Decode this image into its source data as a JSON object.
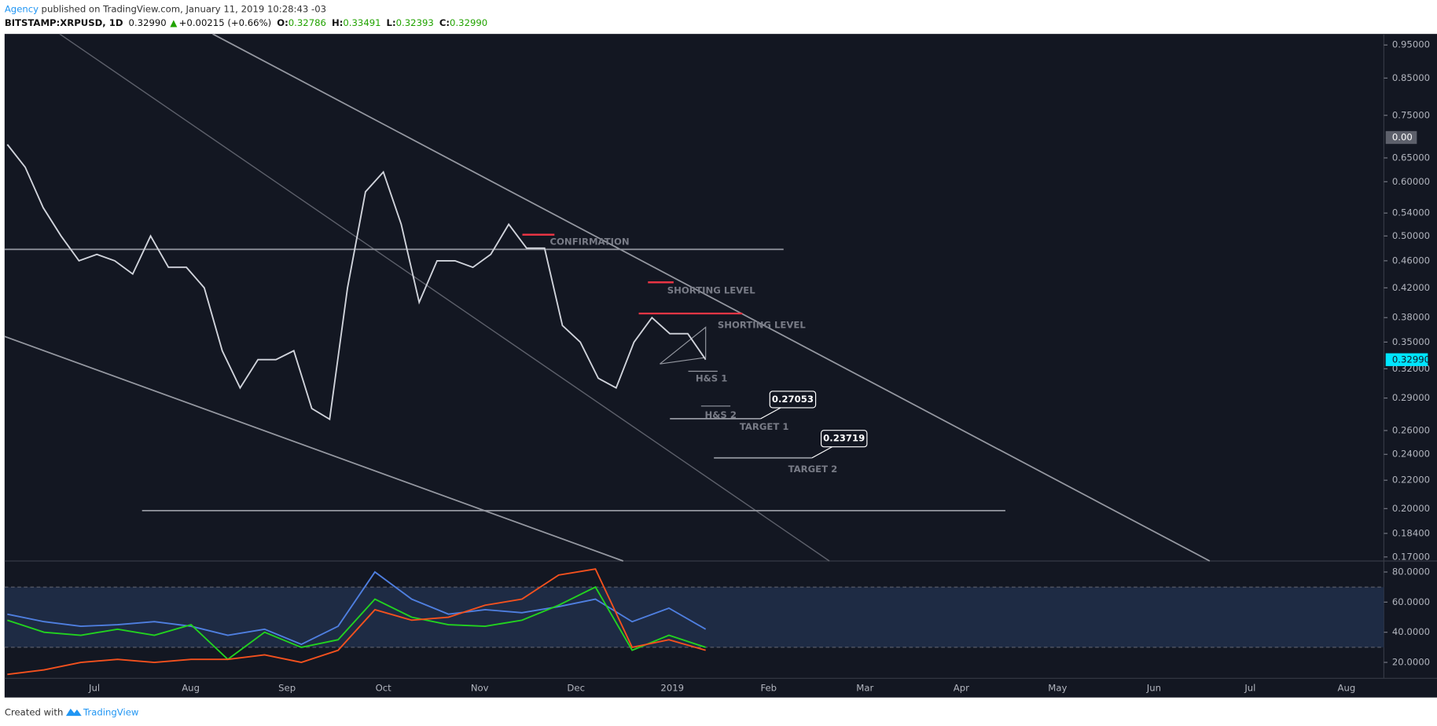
{
  "header": {
    "author": "Agency",
    "published": "published on TradingView.com, January 11, 2019 10:28:43 -03",
    "symbol": "BITSTAMP:XRPUSD, 1D",
    "price": "0.32990",
    "change": "+0.00215 (+0.66%)",
    "ohlc": [
      {
        "label": "O:",
        "value": "0.32786"
      },
      {
        "label": "H:",
        "value": "0.33491"
      },
      {
        "label": "L:",
        "value": "0.32393"
      },
      {
        "label": "C:",
        "value": "0.32990"
      }
    ]
  },
  "chart_data": [
    {
      "type": "line",
      "log": true,
      "grid": false,
      "xtick_labels": [
        "Jul",
        "Aug",
        "Sep",
        "Oct",
        "Nov",
        "Dec",
        "2019",
        "Feb",
        "Mar",
        "Apr",
        "May",
        "Jun",
        "Jul",
        "Aug"
      ],
      "series": [
        {
          "name": "XRPUSD",
          "color": "#d1d4dc",
          "values": [
            0.68,
            0.63,
            0.55,
            0.5,
            0.46,
            0.47,
            0.46,
            0.44,
            0.5,
            0.45,
            0.45,
            0.42,
            0.34,
            0.3,
            0.33,
            0.33,
            0.34,
            0.28,
            0.27,
            0.42,
            0.58,
            0.62,
            0.52,
            0.4,
            0.46,
            0.46,
            0.45,
            0.47,
            0.52,
            0.48,
            0.48,
            0.37,
            0.35,
            0.31,
            0.3,
            0.35,
            0.38,
            0.36,
            0.36,
            0.33
          ]
        }
      ],
      "ylim": [
        0.1677,
        0.986
      ],
      "yticks": [
        {
          "value": 0.17,
          "label": "0.17000"
        },
        {
          "value": 0.184,
          "label": "0.18400"
        },
        {
          "value": 0.2,
          "label": "0.20000"
        },
        {
          "value": 0.22,
          "label": "0.22000"
        },
        {
          "value": 0.24,
          "label": "0.24000"
        },
        {
          "value": 0.26,
          "label": "0.26000"
        },
        {
          "value": 0.29,
          "label": "0.29000"
        },
        {
          "value": 0.32,
          "label": "0.32000"
        },
        {
          "value": 0.35,
          "label": "0.35000"
        },
        {
          "value": 0.38,
          "label": "0.38000"
        },
        {
          "value": 0.42,
          "label": "0.42000"
        },
        {
          "value": 0.46,
          "label": "0.46000"
        },
        {
          "value": 0.5,
          "label": "0.50000"
        },
        {
          "value": 0.54,
          "label": "0.54000"
        },
        {
          "value": 0.6,
          "label": "0.60000"
        },
        {
          "value": 0.65,
          "label": "0.65000"
        },
        {
          "value": 0.75,
          "label": "0.75000"
        },
        {
          "value": 0.85,
          "label": "0.85000"
        },
        {
          "value": 0.95,
          "label": "0.95000"
        }
      ],
      "last_price": {
        "value": 0.3299,
        "label": "0.32990"
      },
      "compare_label": "0.00",
      "annotations": [
        "CONFIRMATION",
        "SHORTING LEVEL",
        "SHORTING LEVEL",
        "H&S 1",
        "H&S 2",
        "TARGET 1",
        "TARGET 2"
      ],
      "targets": [
        0.27053,
        0.23719
      ]
    },
    {
      "type": "line",
      "ylim": [
        9.4,
        86.7
      ],
      "yticks": [
        {
          "value": 20,
          "label": "20.0000"
        },
        {
          "value": 40,
          "label": "40.0000"
        },
        {
          "value": 60,
          "label": "60.0000"
        },
        {
          "value": 80,
          "label": "80.0000"
        }
      ],
      "band": [
        30,
        70
      ],
      "series": [
        {
          "name": "Blue",
          "color": "#4f7fe0",
          "values": [
            52,
            47,
            44,
            45,
            47,
            44,
            38,
            42,
            32,
            44,
            80,
            62,
            52,
            55,
            53,
            57,
            62,
            47,
            56,
            42
          ]
        },
        {
          "name": "Green",
          "color": "#22d31f",
          "values": [
            48,
            40,
            38,
            42,
            38,
            45,
            22,
            40,
            30,
            35,
            62,
            50,
            45,
            44,
            48,
            58,
            70,
            28,
            38,
            30
          ]
        },
        {
          "name": "Orange",
          "color": "#f4511e",
          "values": [
            12,
            15,
            20,
            22,
            20,
            22,
            22,
            25,
            20,
            28,
            55,
            48,
            50,
            58,
            62,
            78,
            82,
            30,
            35,
            28
          ]
        }
      ]
    }
  ],
  "footer": {
    "created": "Created with",
    "brand": "TradingView"
  }
}
